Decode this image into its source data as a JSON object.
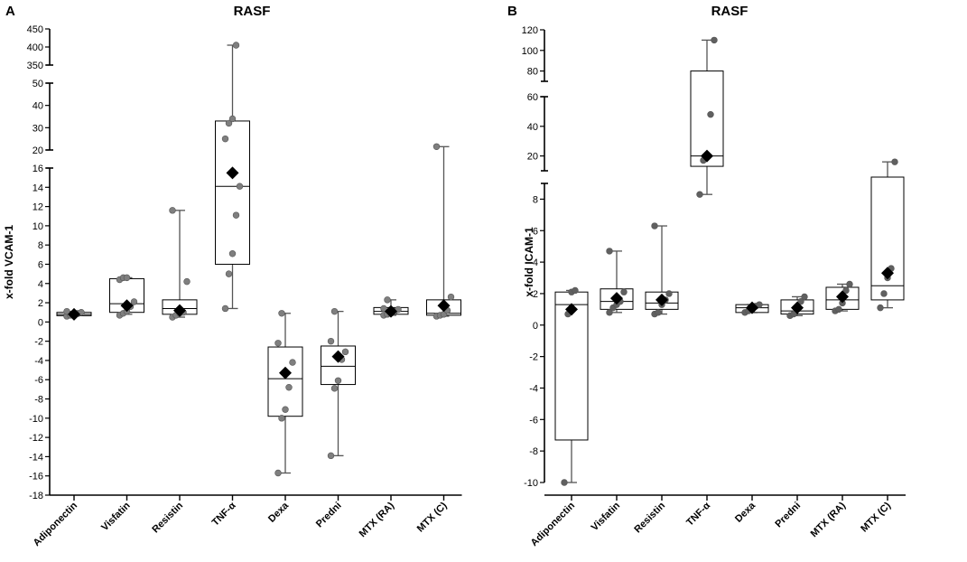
{
  "chart_data": [
    {
      "panel": "A",
      "type": "boxplot",
      "title": "RASF",
      "ylabel": "x-fold VCAM-1",
      "xlabel": "",
      "categories": [
        "Adiponectin",
        "Visfatin",
        "Resistin",
        "TNF-α",
        "Dexa",
        "Predni",
        "MTX (RA)",
        "MTX (C)"
      ],
      "y_segments": [
        {
          "range": [
            -18,
            16
          ],
          "ticks": [
            -18,
            -16,
            -14,
            -12,
            -10,
            -8,
            -6,
            -4,
            -2,
            0,
            2,
            4,
            6,
            8,
            10,
            12,
            14,
            16
          ],
          "tick_labels": [
            "-18",
            "-16",
            "-14",
            "-12",
            "-10",
            "-8",
            "-6",
            "-4",
            "-2",
            "0",
            "2",
            "4",
            "6",
            "8",
            "10",
            "12",
            "14",
            "16"
          ]
        },
        {
          "range": [
            20,
            50
          ],
          "ticks": [
            20,
            30,
            40,
            50
          ],
          "tick_labels": [
            "20",
            "30",
            "40",
            "50"
          ]
        },
        {
          "range": [
            350,
            450
          ],
          "ticks": [
            350,
            400,
            450
          ],
          "tick_labels": [
            "350",
            "400",
            "450"
          ]
        }
      ],
      "series": [
        {
          "name": "Adiponectin",
          "whisker_low": 0.6,
          "q1": 0.65,
          "median": 0.8,
          "q3": 1.0,
          "whisker_high": 1.1,
          "mean": 0.8,
          "points": [
            0.6,
            0.7,
            0.8,
            0.9,
            1.0,
            1.1
          ]
        },
        {
          "name": "Visfatin",
          "whisker_low": 0.8,
          "q1": 1.0,
          "median": 1.9,
          "q3": 4.5,
          "whisker_high": 4.6,
          "mean": 1.7,
          "points": [
            0.7,
            0.9,
            1.1,
            1.6,
            2.1,
            4.4,
            4.6,
            4.6
          ]
        },
        {
          "name": "Resistin",
          "whisker_low": 0.5,
          "q1": 0.8,
          "median": 1.4,
          "q3": 2.3,
          "whisker_high": 11.6,
          "mean": 1.2,
          "points": [
            0.5,
            0.7,
            0.9,
            1.0,
            4.2,
            11.6
          ]
        },
        {
          "name": "TNF-α",
          "whisker_low": 1.4,
          "q1": 6.0,
          "median": 14.1,
          "q3": 33.0,
          "whisker_high": 405,
          "mean": 15.5,
          "points": [
            1.4,
            5.0,
            7.1,
            11.1,
            14.1,
            25.0,
            32.0,
            34.0,
            405
          ]
        },
        {
          "name": "Dexa",
          "whisker_low": -15.7,
          "q1": -9.8,
          "median": -5.9,
          "q3": -2.6,
          "whisker_high": 0.9,
          "mean": -5.3,
          "points": [
            -15.7,
            -10.0,
            -9.1,
            -6.8,
            -4.2,
            -2.2,
            0.9
          ]
        },
        {
          "name": "Predni",
          "whisker_low": -13.9,
          "q1": -6.5,
          "median": -4.6,
          "q3": -2.5,
          "whisker_high": 1.1,
          "mean": -3.6,
          "points": [
            -13.9,
            -6.9,
            -6.1,
            -3.9,
            -3.1,
            -2.0,
            1.1
          ]
        },
        {
          "name": "MTX (RA)",
          "whisker_low": 0.7,
          "q1": 0.8,
          "median": 1.1,
          "q3": 1.5,
          "whisker_high": 2.3,
          "mean": 1.1,
          "points": [
            0.7,
            0.8,
            0.9,
            1.1,
            1.3,
            1.4,
            2.3
          ]
        },
        {
          "name": "MTX (C)",
          "whisker_low": 0.6,
          "q1": 0.7,
          "median": 0.9,
          "q3": 2.3,
          "whisker_high": 21.5,
          "mean": 1.7,
          "points": [
            0.6,
            0.7,
            0.8,
            1.2,
            2.6,
            21.5
          ]
        }
      ]
    },
    {
      "panel": "B",
      "type": "boxplot",
      "title": "RASF",
      "ylabel": "x-fold ICAM-1",
      "xlabel": "",
      "categories": [
        "Adiponectin",
        "Visfatin",
        "Resistin",
        "TNF-α",
        "Dexa",
        "Predni",
        "MTX (RA)",
        "MTX (C)"
      ],
      "y_segments": [
        {
          "range": [
            -10,
            9
          ],
          "ticks": [
            -10,
            -8,
            -6,
            -4,
            -2,
            0,
            2,
            4,
            6,
            8
          ],
          "tick_labels": [
            "-10",
            "-8",
            "-6",
            "-4",
            "-2",
            "0",
            "2",
            "4",
            "6",
            "8"
          ]
        },
        {
          "range": [
            10,
            60
          ],
          "ticks": [
            20,
            40,
            60
          ],
          "tick_labels": [
            "20",
            "40",
            "60"
          ]
        },
        {
          "range": [
            70,
            120
          ],
          "ticks": [
            80,
            100,
            120
          ],
          "tick_labels": [
            "80",
            "100",
            "120"
          ]
        }
      ],
      "series": [
        {
          "name": "Adiponectin",
          "whisker_low": -10.0,
          "q1": -7.3,
          "median": 1.3,
          "q3": 2.1,
          "whisker_high": 2.2,
          "mean": 1.0,
          "points": [
            -10.0,
            0.7,
            2.1,
            2.2
          ]
        },
        {
          "name": "Visfatin",
          "whisker_low": 0.8,
          "q1": 1.0,
          "median": 1.5,
          "q3": 2.3,
          "whisker_high": 4.7,
          "mean": 1.7,
          "points": [
            0.8,
            1.1,
            1.3,
            1.5,
            2.1,
            4.7
          ]
        },
        {
          "name": "Resistin",
          "whisker_low": 0.7,
          "q1": 1.0,
          "median": 1.4,
          "q3": 2.1,
          "whisker_high": 6.3,
          "mean": 1.6,
          "points": [
            0.7,
            0.8,
            1.3,
            1.6,
            2.0,
            6.3
          ]
        },
        {
          "name": "TNF-α",
          "whisker_low": 8.3,
          "q1": 13.0,
          "median": 20.0,
          "q3": 80.0,
          "whisker_high": 110.0,
          "mean": 20.0,
          "points": [
            8.3,
            17.0,
            21.0,
            48.0,
            110.0
          ]
        },
        {
          "name": "Dexa",
          "whisker_low": 0.8,
          "q1": 0.8,
          "median": 1.1,
          "q3": 1.3,
          "whisker_high": 1.3,
          "mean": 1.1,
          "points": [
            0.8,
            0.9,
            1.0,
            1.2,
            1.3
          ]
        },
        {
          "name": "Predni",
          "whisker_low": 0.6,
          "q1": 0.7,
          "median": 0.9,
          "q3": 1.6,
          "whisker_high": 1.8,
          "mean": 1.1,
          "points": [
            0.6,
            0.7,
            1.0,
            1.5,
            1.8
          ]
        },
        {
          "name": "MTX (RA)",
          "whisker_low": 0.9,
          "q1": 1.0,
          "median": 1.6,
          "q3": 2.4,
          "whisker_high": 2.6,
          "mean": 1.8,
          "points": [
            0.9,
            1.0,
            1.4,
            2.2,
            2.6
          ]
        },
        {
          "name": "MTX (C)",
          "whisker_low": 1.1,
          "q1": 1.6,
          "median": 2.5,
          "q3": 9.5,
          "whisker_high": 16.0,
          "mean": 3.3,
          "points": [
            1.1,
            2.0,
            3.0,
            3.6,
            16.0
          ]
        }
      ]
    }
  ],
  "colors": {
    "box_stroke": "#000000",
    "whisker": "#555555",
    "point_fill": "#7f7f7f",
    "point_fill_dark": "#606060",
    "mean_fill": "#000000",
    "axis": "#000000"
  }
}
